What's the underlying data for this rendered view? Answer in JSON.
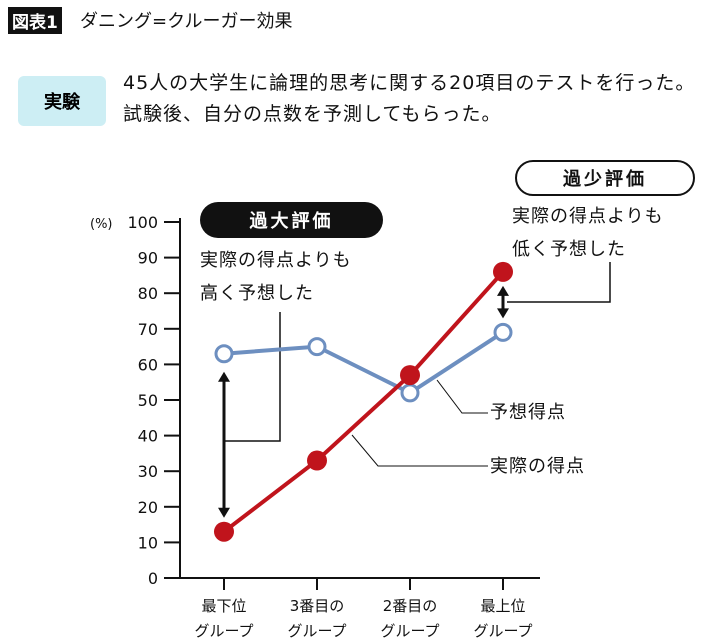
{
  "header": {
    "figure_tag": "図表1",
    "title": "ダニング=クルーガー効果"
  },
  "experiment": {
    "badge": "実験",
    "text": "45人の大学生に論理的思考に関する20項目のテストを行った。試験後、自分の点数を予測してもらった。"
  },
  "annotations": {
    "over": {
      "label": "過大評価",
      "line1": "実際の得点よりも",
      "line2": "高く予想した"
    },
    "under": {
      "label": "過少評価",
      "line1": "実際の得点よりも",
      "line2": "低く予想した"
    }
  },
  "chart_data": {
    "type": "line",
    "ylabel": "(%)",
    "ylim": [
      0,
      100
    ],
    "yticks": [
      0,
      10,
      20,
      30,
      40,
      50,
      60,
      70,
      80,
      90,
      100
    ],
    "categories": [
      [
        "最下位",
        "グループ"
      ],
      [
        "3番目の",
        "グループ"
      ],
      [
        "2番目の",
        "グループ"
      ],
      [
        "最上位",
        "グループ"
      ]
    ],
    "series": [
      {
        "name": "予想得点",
        "values": [
          63,
          65,
          52,
          69
        ],
        "color": "#6d8fc0",
        "marker": "open-circle"
      },
      {
        "name": "実際の得点",
        "values": [
          13,
          33,
          57,
          86
        ],
        "color": "#c0141c",
        "marker": "filled-circle"
      }
    ],
    "grid": false
  }
}
